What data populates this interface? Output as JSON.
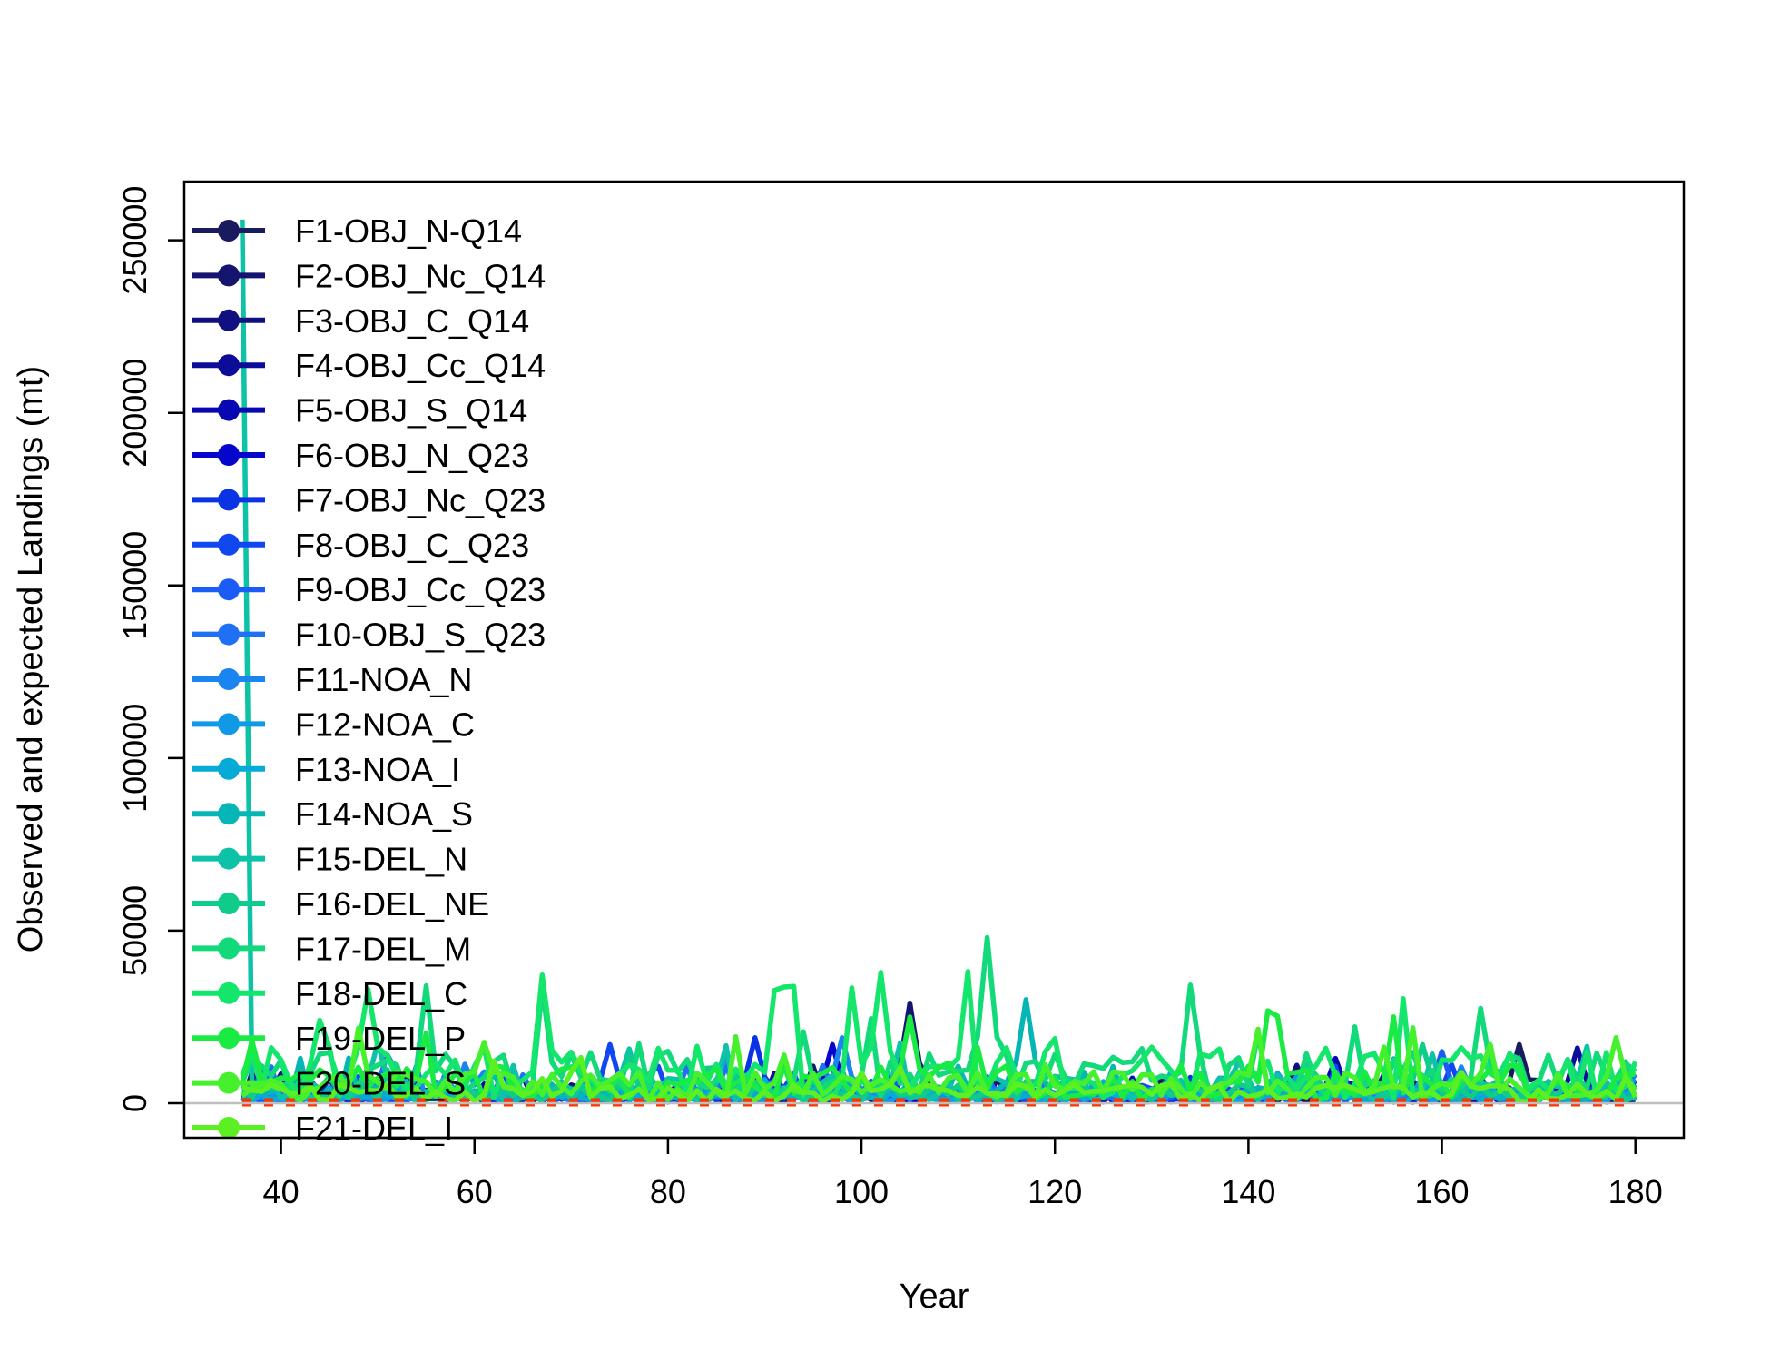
{
  "chart_data": {
    "type": "line",
    "title": "",
    "xlabel": "Year",
    "ylabel": "Observed and expected Landings (mt)",
    "xlim": [
      30,
      185
    ],
    "ylim": [
      -10000,
      267000
    ],
    "xticks": [
      40,
      60,
      80,
      100,
      120,
      140,
      160,
      180
    ],
    "yticks": [
      0,
      50000,
      100000,
      150000,
      200000,
      250000
    ],
    "reference_line_y": 0,
    "reference_line_color": "#bebebe",
    "expected_series_color": "#ff3300",
    "legend_position": "top-left",
    "series": [
      {
        "name": "F1-OBJ_N-Q14",
        "color": "#1a1a5e",
        "peak": [
          168,
          17000
        ],
        "level": 2000
      },
      {
        "name": "F2-OBJ_Nc_Q14",
        "color": "#151570",
        "peak": [
          105,
          29000
        ],
        "level": 2500
      },
      {
        "name": "F3-OBJ_C_Q14",
        "color": "#101080",
        "peak": [
          145,
          11000
        ],
        "level": 2000
      },
      {
        "name": "F4-OBJ_Cc_Q14",
        "color": "#0c0c99",
        "peak": [
          174,
          16000
        ],
        "level": 2000
      },
      {
        "name": "F5-OBJ_S_Q14",
        "color": "#0808b3",
        "peak": [
          149,
          13000
        ],
        "level": 1800
      },
      {
        "name": "F6-OBJ_N_Q23",
        "color": "#0505cc",
        "peak": [
          97,
          17000
        ],
        "level": 2000
      },
      {
        "name": "F7-OBJ_Nc_Q23",
        "color": "#0a33e6",
        "peak": [
          89,
          19000
        ],
        "level": 2500
      },
      {
        "name": "F8-OBJ_C_Q23",
        "color": "#1047f0",
        "peak": [
          74,
          17000
        ],
        "level": 2500
      },
      {
        "name": "F9-OBJ_Cc_Q23",
        "color": "#1a5cf5",
        "peak": [
          160,
          15000
        ],
        "level": 2000
      },
      {
        "name": "F10-OBJ_S_Q23",
        "color": "#1f70f5",
        "peak": [
          51,
          14000
        ],
        "level": 2500
      },
      {
        "name": "F11-NOA_N",
        "color": "#1a85f0",
        "peak": [
          98,
          19000
        ],
        "level": 2500
      },
      {
        "name": "F12-NOA_C",
        "color": "#1199e6",
        "peak": [
          86,
          14000
        ],
        "level": 2000
      },
      {
        "name": "F13-NOA_I",
        "color": "#05aad6",
        "peak": [
          132,
          9000
        ],
        "level": 1500
      },
      {
        "name": "F14-NOA_S",
        "color": "#06b5b5",
        "peak": [
          117,
          30000
        ],
        "level": 3000
      },
      {
        "name": "F15-DEL_N",
        "color": "#0dc2a6",
        "peak": [
          36,
          256000
        ],
        "level": 4000
      },
      {
        "name": "F16-DEL_NE",
        "color": "#10cc8a",
        "peak": [
          158,
          17000
        ],
        "level": 3000
      },
      {
        "name": "F17-DEL_M",
        "color": "#12d97a",
        "peak": [
          113,
          48000
        ],
        "level": 8000
      },
      {
        "name": "F18-DEL_C",
        "color": "#14e66b",
        "peak": [
          49,
          33000
        ],
        "level": 9000
      },
      {
        "name": "F19-DEL_P",
        "color": "#1aeb42",
        "peak": [
          105,
          25000
        ],
        "level": 6000
      },
      {
        "name": "F20-DEL_S",
        "color": "#47f02d",
        "peak": [
          178,
          19000
        ],
        "level": 5000
      },
      {
        "name": "F21-DEL_I",
        "color": "#5cf022",
        "peak": [
          70,
          9000
        ],
        "level": 3000
      }
    ]
  }
}
